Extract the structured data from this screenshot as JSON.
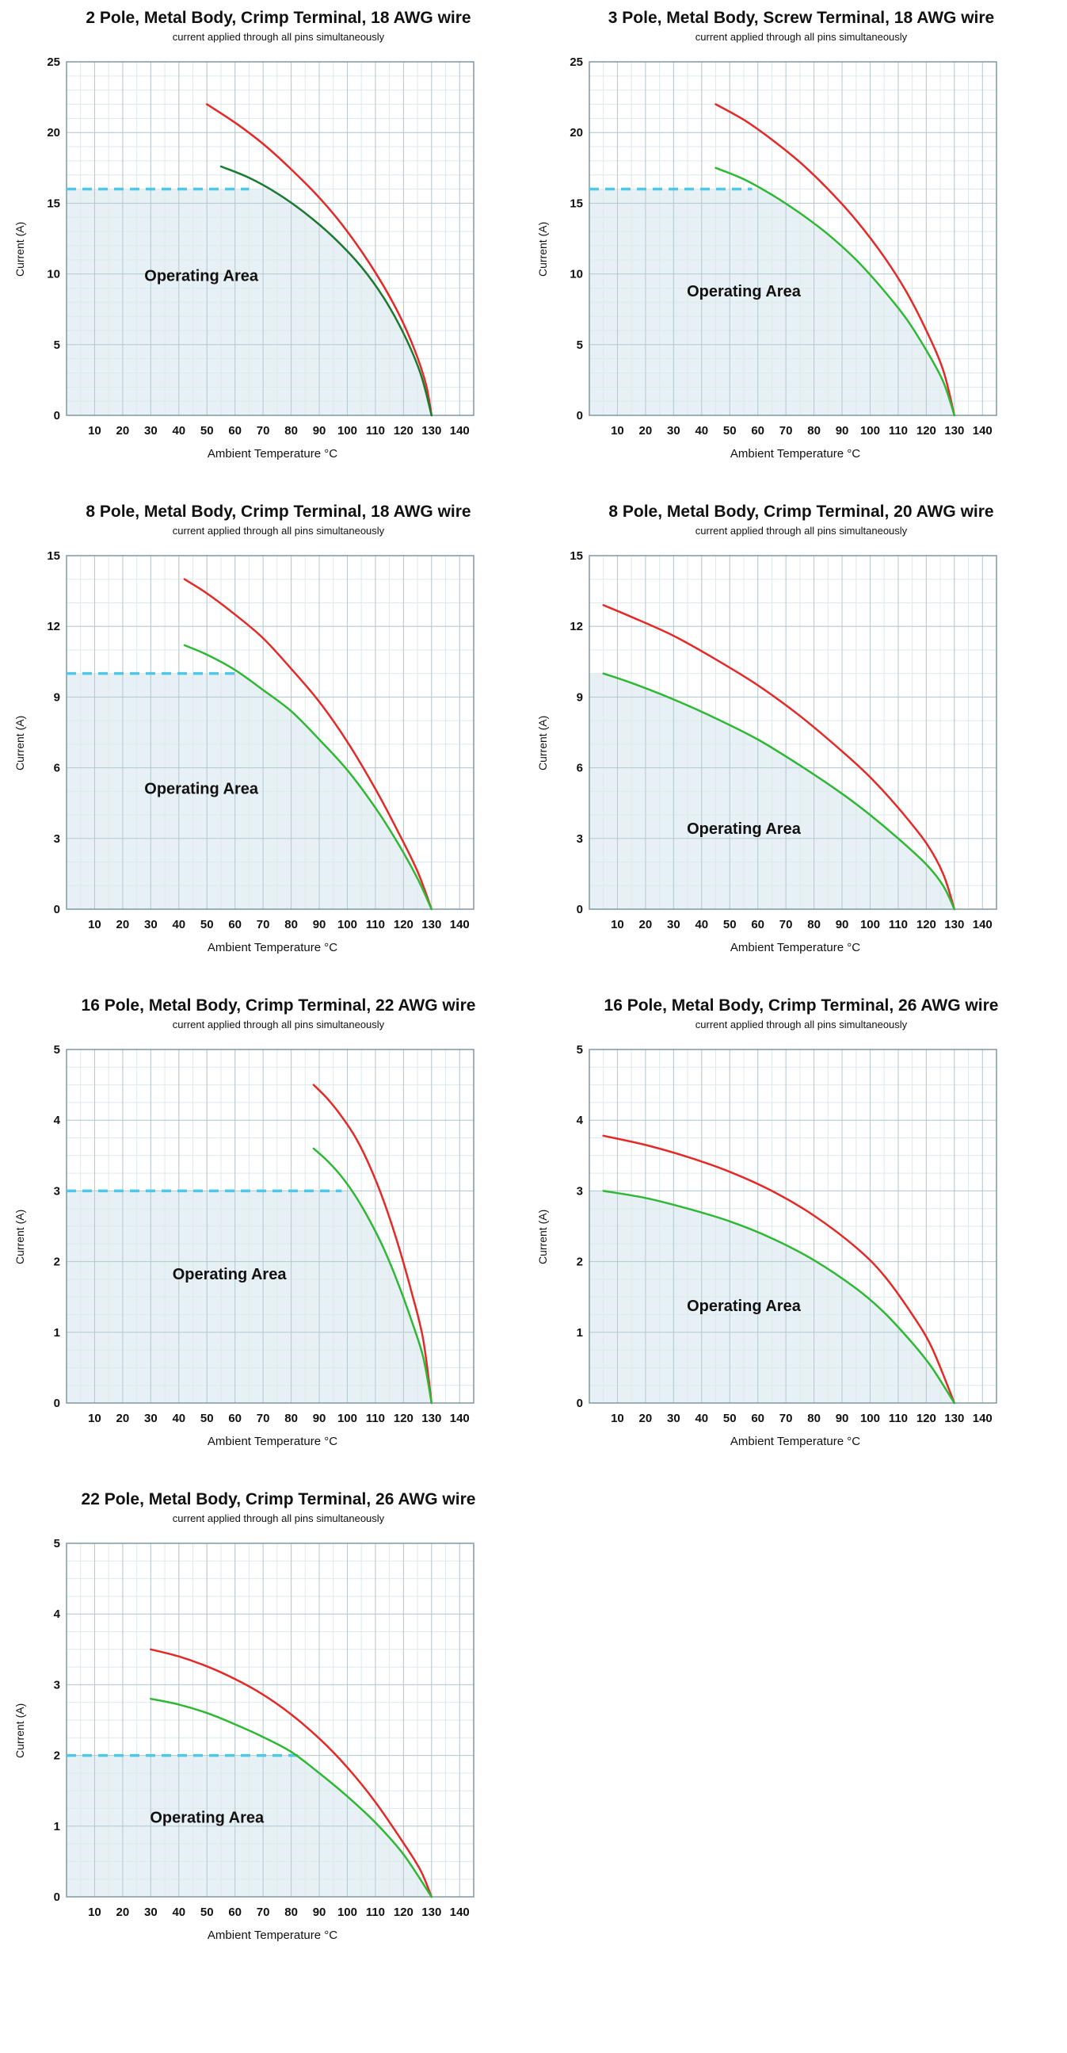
{
  "colors": {
    "red": "#e42a28",
    "green": "#2eb835",
    "dark_green": "#1b7a30",
    "cyan": "#4fc8e8",
    "area_fill": "#e7f0f4",
    "grid_major": "#b6c9cf",
    "grid_minor": "#dde9ec",
    "plot_border": "#7f989f",
    "text": "#111111"
  },
  "chart_data": [
    {
      "type": "line",
      "title": "2 Pole, Metal Body, Crimp Terminal, 18 AWG wire",
      "subtitle": "current applied through all pins simultaneously",
      "xlabel": "Ambient Temperature °C",
      "ylabel": "Current (A)",
      "xlim": [
        0,
        145
      ],
      "ylim": [
        0,
        25
      ],
      "xticks": [
        10,
        20,
        30,
        40,
        50,
        60,
        70,
        80,
        90,
        100,
        110,
        120,
        130,
        140
      ],
      "yticks": [
        0,
        5,
        10,
        15,
        20,
        25
      ],
      "x_minor_step": 5,
      "y_minor_step": 1,
      "operating_area_label": {
        "text": "Operating Area",
        "x": 48,
        "y": 9.5
      },
      "rated_line": {
        "value": 16,
        "x_end": 65
      },
      "series": [
        {
          "name": "upper-derating-curve",
          "color": "#e42a28",
          "points": [
            [
              50,
              22
            ],
            [
              60,
              20.7
            ],
            [
              70,
              19.2
            ],
            [
              80,
              17.4
            ],
            [
              90,
              15.4
            ],
            [
              100,
              13.0
            ],
            [
              110,
              10.1
            ],
            [
              118,
              7.3
            ],
            [
              124,
              4.6
            ],
            [
              128,
              2.2
            ],
            [
              130,
              0
            ]
          ]
        },
        {
          "name": "lower-derating-curve",
          "color": "#1b7a30",
          "points": [
            [
              55,
              17.6
            ],
            [
              65,
              16.8
            ],
            [
              75,
              15.7
            ],
            [
              85,
              14.3
            ],
            [
              95,
              12.6
            ],
            [
              105,
              10.5
            ],
            [
              113,
              8.3
            ],
            [
              120,
              5.8
            ],
            [
              126,
              3.0
            ],
            [
              130,
              0
            ]
          ]
        }
      ]
    },
    {
      "type": "line",
      "title": "3 Pole, Metal Body, Screw Terminal, 18 AWG wire",
      "subtitle": "current applied through all pins simultaneously",
      "xlabel": "Ambient Temperature °C",
      "ylabel": "Current (A)",
      "xlim": [
        0,
        145
      ],
      "ylim": [
        0,
        25
      ],
      "xticks": [
        10,
        20,
        30,
        40,
        50,
        60,
        70,
        80,
        90,
        100,
        110,
        120,
        130,
        140
      ],
      "yticks": [
        0,
        5,
        10,
        15,
        20,
        25
      ],
      "x_minor_step": 5,
      "y_minor_step": 1,
      "operating_area_label": {
        "text": "Operating Area",
        "x": 55,
        "y": 8.4
      },
      "rated_line": {
        "value": 16,
        "x_end": 58
      },
      "series": [
        {
          "name": "upper-derating-curve",
          "color": "#e42a28",
          "points": [
            [
              45,
              22
            ],
            [
              55,
              20.9
            ],
            [
              65,
              19.5
            ],
            [
              75,
              17.9
            ],
            [
              85,
              16.0
            ],
            [
              95,
              13.8
            ],
            [
              105,
              11.2
            ],
            [
              113,
              8.7
            ],
            [
              120,
              6.0
            ],
            [
              126,
              3.2
            ],
            [
              130,
              0
            ]
          ]
        },
        {
          "name": "lower-derating-curve",
          "color": "#2eb835",
          "points": [
            [
              45,
              17.5
            ],
            [
              55,
              16.7
            ],
            [
              65,
              15.6
            ],
            [
              75,
              14.3
            ],
            [
              85,
              12.8
            ],
            [
              95,
              11.0
            ],
            [
              105,
              8.8
            ],
            [
              113,
              6.8
            ],
            [
              120,
              4.6
            ],
            [
              126,
              2.4
            ],
            [
              130,
              0
            ]
          ]
        }
      ]
    },
    {
      "type": "line",
      "title": "8 Pole, Metal Body, Crimp Terminal, 18 AWG wire",
      "subtitle": "current applied through all pins simultaneously",
      "xlabel": "Ambient Temperature °C",
      "ylabel": "Current (A)",
      "xlim": [
        0,
        145
      ],
      "ylim": [
        0,
        15
      ],
      "xticks": [
        10,
        20,
        30,
        40,
        50,
        60,
        70,
        80,
        90,
        100,
        110,
        120,
        130,
        140
      ],
      "yticks": [
        0,
        3,
        6,
        9,
        12,
        15
      ],
      "x_minor_step": 5,
      "y_minor_step": 1,
      "operating_area_label": {
        "text": "Operating Area",
        "x": 48,
        "y": 4.9
      },
      "rated_line": {
        "value": 10,
        "x_end": 60
      },
      "series": [
        {
          "name": "upper-derating-curve",
          "color": "#e42a28",
          "points": [
            [
              42,
              14
            ],
            [
              50,
              13.4
            ],
            [
              60,
              12.5
            ],
            [
              70,
              11.5
            ],
            [
              80,
              10.2
            ],
            [
              90,
              8.8
            ],
            [
              100,
              7.1
            ],
            [
              110,
              5.1
            ],
            [
              118,
              3.3
            ],
            [
              125,
              1.6
            ],
            [
              130,
              0
            ]
          ]
        },
        {
          "name": "lower-derating-curve",
          "color": "#2eb835",
          "points": [
            [
              42,
              11.2
            ],
            [
              50,
              10.8
            ],
            [
              60,
              10.15
            ],
            [
              70,
              9.3
            ],
            [
              80,
              8.4
            ],
            [
              90,
              7.2
            ],
            [
              100,
              5.9
            ],
            [
              110,
              4.3
            ],
            [
              118,
              2.8
            ],
            [
              125,
              1.3
            ],
            [
              130,
              0
            ]
          ]
        }
      ]
    },
    {
      "type": "line",
      "title": "8 Pole, Metal Body, Crimp Terminal, 20 AWG wire",
      "subtitle": "current applied through all pins simultaneously",
      "xlabel": "Ambient Temperature °C",
      "ylabel": "Current (A)",
      "xlim": [
        0,
        145
      ],
      "ylim": [
        0,
        15
      ],
      "xticks": [
        10,
        20,
        30,
        40,
        50,
        60,
        70,
        80,
        90,
        100,
        110,
        120,
        130,
        140
      ],
      "yticks": [
        0,
        3,
        6,
        9,
        12,
        15
      ],
      "x_minor_step": 5,
      "y_minor_step": 1,
      "operating_area_label": {
        "text": "Operating Area",
        "x": 55,
        "y": 3.2
      },
      "rated_line": null,
      "series": [
        {
          "name": "upper-derating-curve",
          "color": "#e42a28",
          "points": [
            [
              5,
              12.9
            ],
            [
              15,
              12.4
            ],
            [
              30,
              11.6
            ],
            [
              45,
              10.6
            ],
            [
              60,
              9.5
            ],
            [
              75,
              8.2
            ],
            [
              90,
              6.7
            ],
            [
              100,
              5.6
            ],
            [
              110,
              4.3
            ],
            [
              120,
              2.8
            ],
            [
              126,
              1.5
            ],
            [
              130,
              0
            ]
          ]
        },
        {
          "name": "lower-derating-curve",
          "color": "#2eb835",
          "points": [
            [
              5,
              10.0
            ],
            [
              15,
              9.6
            ],
            [
              30,
              8.9
            ],
            [
              45,
              8.1
            ],
            [
              60,
              7.2
            ],
            [
              75,
              6.1
            ],
            [
              90,
              4.9
            ],
            [
              100,
              4.0
            ],
            [
              110,
              3.0
            ],
            [
              120,
              1.9
            ],
            [
              126,
              1.0
            ],
            [
              130,
              0
            ]
          ]
        }
      ]
    },
    {
      "type": "line",
      "title": "16 Pole, Metal Body, Crimp Terminal, 22 AWG wire",
      "subtitle": "current applied through all pins simultaneously",
      "xlabel": "Ambient Temperature °C",
      "ylabel": "Current (A)",
      "xlim": [
        0,
        145
      ],
      "ylim": [
        0,
        5
      ],
      "xticks": [
        10,
        20,
        30,
        40,
        50,
        60,
        70,
        80,
        90,
        100,
        110,
        120,
        130,
        140
      ],
      "yticks": [
        0,
        1,
        2,
        3,
        4,
        5
      ],
      "x_minor_step": 5,
      "y_minor_step": 0.25,
      "operating_area_label": {
        "text": "Operating Area",
        "x": 58,
        "y": 1.75
      },
      "rated_line": {
        "value": 3,
        "x_end": 98
      },
      "series": [
        {
          "name": "upper-derating-curve",
          "color": "#e42a28",
          "points": [
            [
              88,
              4.5
            ],
            [
              93,
              4.3
            ],
            [
              98,
              4.05
            ],
            [
              103,
              3.75
            ],
            [
              108,
              3.35
            ],
            [
              113,
              2.85
            ],
            [
              118,
              2.25
            ],
            [
              123,
              1.55
            ],
            [
              127,
              0.9
            ],
            [
              130,
              0
            ]
          ]
        },
        {
          "name": "lower-derating-curve",
          "color": "#2eb835",
          "points": [
            [
              88,
              3.6
            ],
            [
              93,
              3.42
            ],
            [
              98,
              3.2
            ],
            [
              103,
              2.92
            ],
            [
              108,
              2.58
            ],
            [
              113,
              2.18
            ],
            [
              118,
              1.7
            ],
            [
              123,
              1.15
            ],
            [
              127,
              0.65
            ],
            [
              130,
              0
            ]
          ]
        }
      ]
    },
    {
      "type": "line",
      "title": "16 Pole, Metal Body, Crimp Terminal, 26 AWG wire",
      "subtitle": "current applied through all pins simultaneously",
      "xlabel": "Ambient Temperature °C",
      "ylabel": "Current (A)",
      "xlim": [
        0,
        145
      ],
      "ylim": [
        0,
        5
      ],
      "xticks": [
        10,
        20,
        30,
        40,
        50,
        60,
        70,
        80,
        90,
        100,
        110,
        120,
        130,
        140
      ],
      "yticks": [
        0,
        1,
        2,
        3,
        4,
        5
      ],
      "x_minor_step": 5,
      "y_minor_step": 0.25,
      "operating_area_label": {
        "text": "Operating Area",
        "x": 55,
        "y": 1.3
      },
      "rated_line": null,
      "series": [
        {
          "name": "upper-derating-curve",
          "color": "#e42a28",
          "points": [
            [
              5,
              3.78
            ],
            [
              20,
              3.65
            ],
            [
              35,
              3.48
            ],
            [
              50,
              3.27
            ],
            [
              65,
              3.0
            ],
            [
              80,
              2.65
            ],
            [
              95,
              2.2
            ],
            [
              105,
              1.8
            ],
            [
              115,
              1.25
            ],
            [
              122,
              0.78
            ],
            [
              130,
              0
            ]
          ]
        },
        {
          "name": "lower-derating-curve",
          "color": "#2eb835",
          "points": [
            [
              5,
              3.0
            ],
            [
              20,
              2.9
            ],
            [
              35,
              2.75
            ],
            [
              50,
              2.57
            ],
            [
              65,
              2.33
            ],
            [
              80,
              2.02
            ],
            [
              95,
              1.62
            ],
            [
              105,
              1.28
            ],
            [
              115,
              0.85
            ],
            [
              122,
              0.5
            ],
            [
              130,
              0
            ]
          ]
        }
      ]
    },
    {
      "type": "line",
      "title": "22 Pole, Metal Body, Crimp Terminal, 26 AWG wire",
      "subtitle": "current applied through all pins simultaneously",
      "xlabel": "Ambient Temperature °C",
      "ylabel": "Current (A)",
      "xlim": [
        0,
        145
      ],
      "ylim": [
        0,
        5
      ],
      "xticks": [
        10,
        20,
        30,
        40,
        50,
        60,
        70,
        80,
        90,
        100,
        110,
        120,
        130,
        140
      ],
      "yticks": [
        0,
        1,
        2,
        3,
        4,
        5
      ],
      "x_minor_step": 5,
      "y_minor_step": 0.25,
      "operating_area_label": {
        "text": "Operating Area",
        "x": 50,
        "y": 1.05
      },
      "rated_line": {
        "value": 2,
        "x_end": 83
      },
      "series": [
        {
          "name": "upper-derating-curve",
          "color": "#e42a28",
          "points": [
            [
              30,
              3.5
            ],
            [
              40,
              3.4
            ],
            [
              50,
              3.26
            ],
            [
              60,
              3.08
            ],
            [
              70,
              2.86
            ],
            [
              80,
              2.58
            ],
            [
              90,
              2.24
            ],
            [
              100,
              1.83
            ],
            [
              110,
              1.34
            ],
            [
              120,
              0.76
            ],
            [
              126,
              0.38
            ],
            [
              130,
              0
            ]
          ]
        },
        {
          "name": "lower-derating-curve",
          "color": "#2eb835",
          "points": [
            [
              30,
              2.8
            ],
            [
              40,
              2.72
            ],
            [
              50,
              2.6
            ],
            [
              60,
              2.44
            ],
            [
              70,
              2.26
            ],
            [
              80,
              2.05
            ],
            [
              90,
              1.75
            ],
            [
              100,
              1.42
            ],
            [
              110,
              1.05
            ],
            [
              120,
              0.6
            ],
            [
              130,
              0
            ]
          ]
        }
      ]
    }
  ]
}
